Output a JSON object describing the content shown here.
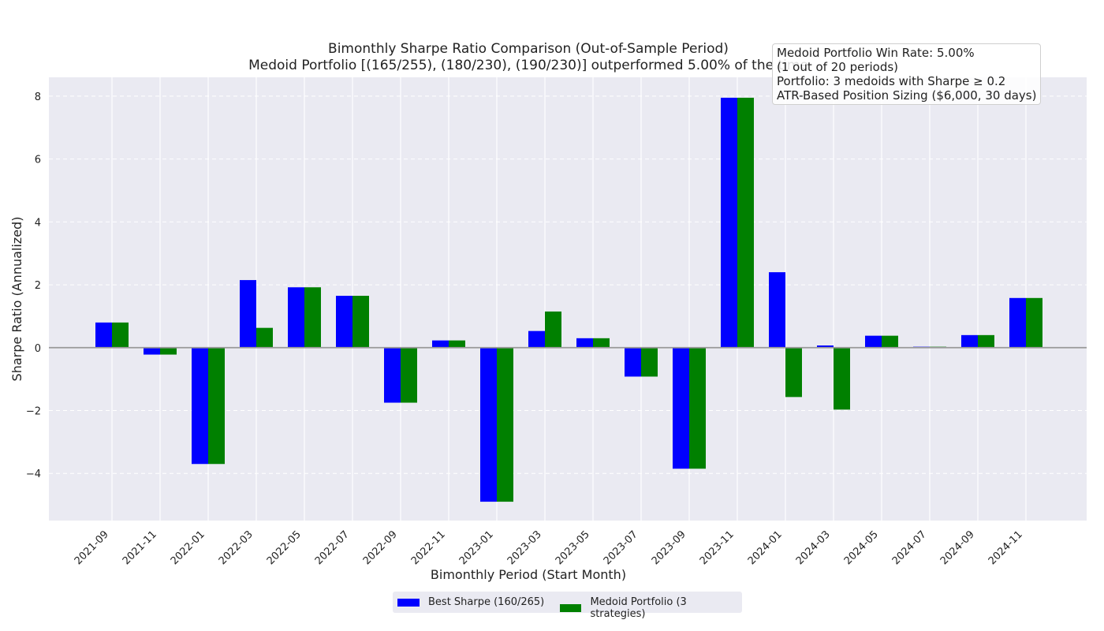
{
  "chart_data": {
    "type": "bar",
    "title": "Bimonthly Sharpe Ratio Comparison (Out-of-Sample Period)",
    "subtitle": "Medoid Portfolio [(165/255), (180/230), (190/230)] outperformed 5.00% of the time",
    "xlabel": "Bimonthly Period (Start Month)",
    "ylabel": "Sharpe Ratio (Annualized)",
    "ylim": [
      -5.5,
      8.6
    ],
    "yticks": [
      -4,
      -2,
      0,
      2,
      4,
      6,
      8
    ],
    "ytick_labels": [
      "−4",
      "−2",
      "0",
      "2",
      "4",
      "6",
      "8"
    ],
    "grid": true,
    "legend_position": "bottom-center",
    "categories": [
      "2021-09",
      "2021-11",
      "2022-01",
      "2022-03",
      "2022-05",
      "2022-07",
      "2022-09",
      "2022-11",
      "2023-01",
      "2023-03",
      "2023-05",
      "2023-07",
      "2023-09",
      "2023-11",
      "2024-01",
      "2024-03",
      "2024-05",
      "2024-07",
      "2024-09",
      "2024-11"
    ],
    "series": [
      {
        "name": "Best Sharpe (160/265)",
        "color": "#0000ff",
        "values": [
          0.8,
          -0.22,
          -3.7,
          2.15,
          1.92,
          1.65,
          -1.75,
          0.23,
          -4.9,
          0.53,
          0.3,
          -0.92,
          -3.85,
          7.95,
          2.4,
          0.07,
          0.38,
          0.03,
          0.4,
          1.58
        ]
      },
      {
        "name": "Medoid Portfolio (3 strategies)",
        "color": "#008000",
        "values": [
          0.8,
          -0.22,
          -3.7,
          0.63,
          1.92,
          1.65,
          -1.75,
          0.23,
          -4.9,
          1.15,
          0.3,
          -0.92,
          -3.85,
          7.95,
          -1.57,
          -1.97,
          0.38,
          0.03,
          0.4,
          1.58
        ]
      }
    ]
  },
  "annotation": {
    "line1": "Medoid Portfolio Win Rate: 5.00%",
    "line2": "(1 out of 20 periods)",
    "line3": "Portfolio: 3 medoids with Sharpe ≥ 0.2",
    "line4": "ATR-Based Position Sizing ($6,000, 30 days)"
  },
  "colors": {
    "plot_background": "#eaeaf2",
    "grid": "#ffffff",
    "zero_line": "#999999"
  }
}
